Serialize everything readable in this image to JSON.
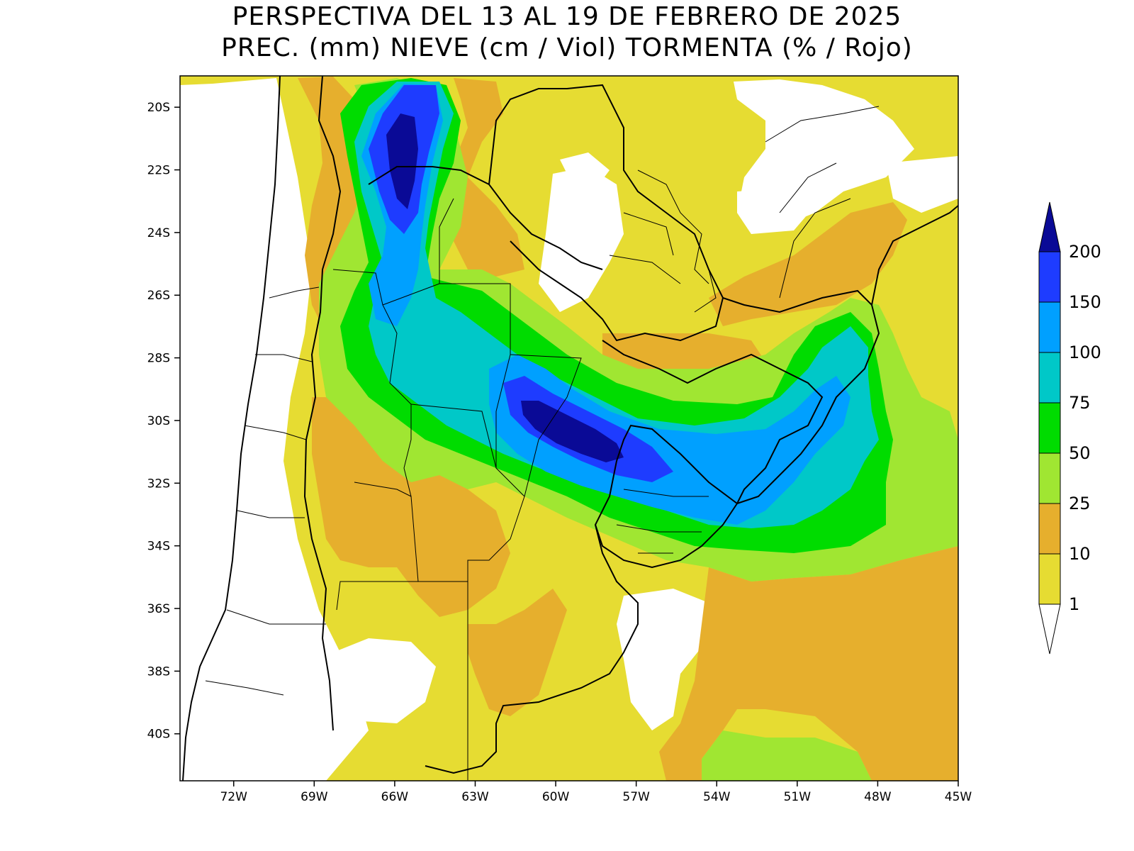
{
  "title": {
    "line1": "PERSPECTIVA DEL 13 AL 19 DE FEBRERO DE 2025",
    "line2": "PREC. (mm) NIEVE (cm / Viol) TORMENTA (% / Rojo)"
  },
  "map": {
    "lon_range": [
      -74.0,
      -45.0
    ],
    "lat_range": [
      -41.5,
      -19.0
    ],
    "lat_ticks": [
      {
        "value": -20,
        "label": "20S"
      },
      {
        "value": -22,
        "label": "22S"
      },
      {
        "value": -24,
        "label": "24S"
      },
      {
        "value": -26,
        "label": "26S"
      },
      {
        "value": -28,
        "label": "28S"
      },
      {
        "value": -30,
        "label": "30S"
      },
      {
        "value": -32,
        "label": "32S"
      },
      {
        "value": -34,
        "label": "34S"
      },
      {
        "value": -36,
        "label": "36S"
      },
      {
        "value": -38,
        "label": "38S"
      },
      {
        "value": -40,
        "label": "40S"
      }
    ],
    "lon_ticks": [
      {
        "value": -72,
        "label": "72W"
      },
      {
        "value": -69,
        "label": "69W"
      },
      {
        "value": -66,
        "label": "66W"
      },
      {
        "value": -63,
        "label": "63W"
      },
      {
        "value": -60,
        "label": "60W"
      },
      {
        "value": -57,
        "label": "57W"
      },
      {
        "value": -54,
        "label": "54W"
      },
      {
        "value": -51,
        "label": "51W"
      },
      {
        "value": -48,
        "label": "48W"
      },
      {
        "value": -45,
        "label": "45W"
      }
    ]
  },
  "legend": {
    "levels": [
      {
        "label": "1",
        "color": "#e6dc32"
      },
      {
        "label": "10",
        "color": "#e6af2d"
      },
      {
        "label": "25",
        "color": "#a0e632"
      },
      {
        "label": "50",
        "color": "#00dc00"
      },
      {
        "label": "75",
        "color": "#00c8c8"
      },
      {
        "label": "100",
        "color": "#00a0ff"
      },
      {
        "label": "150",
        "color": "#1e3cff"
      },
      {
        "label": "200",
        "color": "#0a0a96"
      }
    ],
    "below_min_color": "#ffffff",
    "above_max_color": "#0a0a96"
  }
}
